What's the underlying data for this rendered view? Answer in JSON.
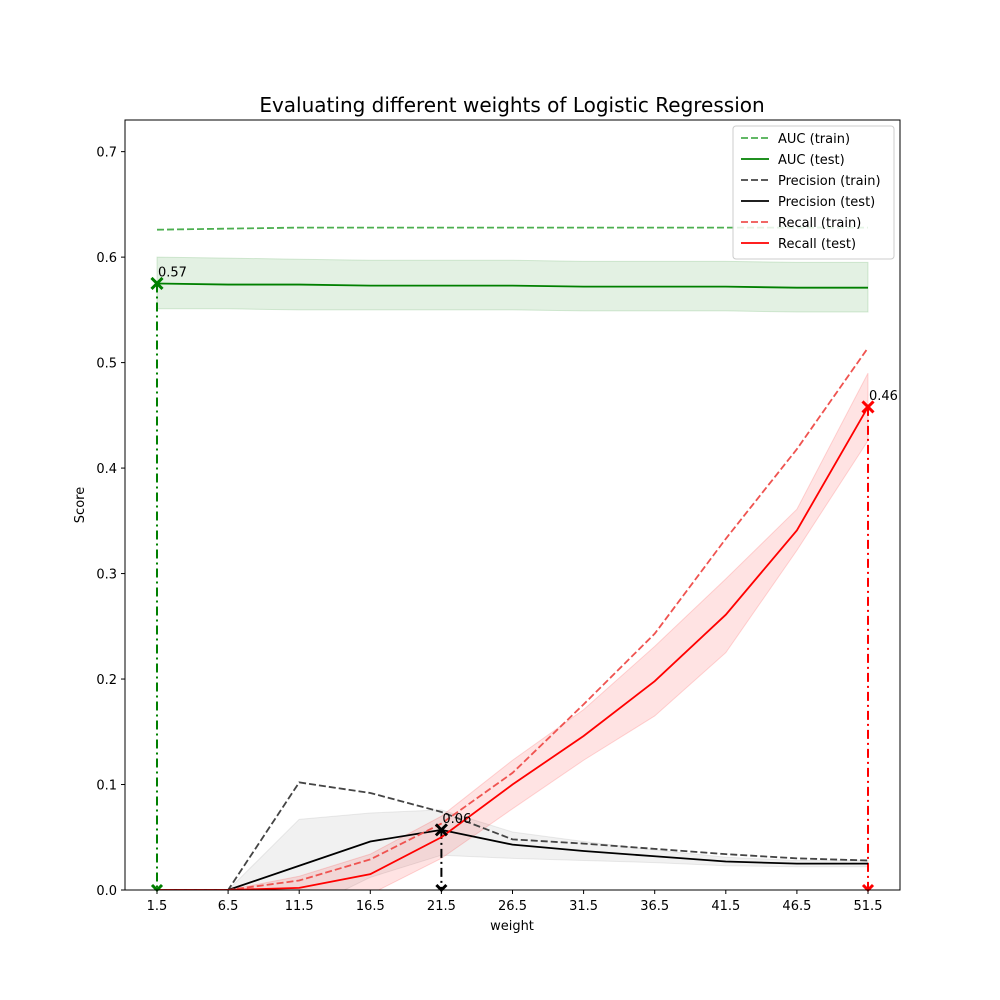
{
  "chart_data": {
    "type": "line",
    "title": "Evaluating different weights of Logistic Regression",
    "xlabel": "weight",
    "ylabel": "Score",
    "x": [
      1.5,
      6.5,
      11.5,
      16.5,
      21.5,
      26.5,
      31.5,
      36.5,
      41.5,
      46.5,
      51.5
    ],
    "x_tick_labels": [
      "1.5",
      "6.5",
      "11.5",
      "16.5",
      "21.5",
      "26.5",
      "31.5",
      "36.5",
      "41.5",
      "46.5",
      "51.5"
    ],
    "xlim": [
      -0.75,
      53.75
    ],
    "ylim": [
      0,
      0.73
    ],
    "y_ticks": [
      0.0,
      0.1,
      0.2,
      0.3,
      0.4,
      0.5,
      0.6,
      0.7
    ],
    "y_tick_labels": [
      "0.0",
      "0.1",
      "0.2",
      "0.3",
      "0.4",
      "0.5",
      "0.6",
      "0.7"
    ],
    "grid": false,
    "legend_position": "top-right",
    "series": [
      {
        "name": "AUC (train)",
        "color": "#4caf50",
        "dash": true,
        "values": [
          0.626,
          0.627,
          0.628,
          0.628,
          0.628,
          0.628,
          0.628,
          0.628,
          0.628,
          0.628,
          0.628
        ]
      },
      {
        "name": "AUC (test)",
        "color": "#008000",
        "dash": false,
        "values": [
          0.575,
          0.574,
          0.574,
          0.573,
          0.573,
          0.573,
          0.572,
          0.572,
          0.572,
          0.571,
          0.571
        ],
        "band_lower": [
          0.551,
          0.551,
          0.55,
          0.55,
          0.55,
          0.55,
          0.549,
          0.549,
          0.549,
          0.548,
          0.548
        ],
        "band_upper": [
          0.6,
          0.599,
          0.598,
          0.597,
          0.597,
          0.597,
          0.596,
          0.596,
          0.596,
          0.595,
          0.595
        ],
        "band_color": "#008000"
      },
      {
        "name": "Precision (train)",
        "color": "#444444",
        "dash": true,
        "values": [
          0.0,
          0.0,
          0.102,
          0.092,
          0.074,
          0.048,
          0.044,
          0.039,
          0.034,
          0.03,
          0.028
        ]
      },
      {
        "name": "Precision (test)",
        "color": "#000000",
        "dash": false,
        "values": [
          0.0,
          0.0,
          0.023,
          0.046,
          0.057,
          0.043,
          0.037,
          0.032,
          0.027,
          0.025,
          0.025
        ],
        "band_lower": [
          0.0,
          0.0,
          -0.021,
          0.012,
          0.033,
          0.03,
          0.028,
          0.026,
          0.023,
          0.022,
          0.022
        ],
        "band_upper": [
          0.0,
          0.0,
          0.067,
          0.073,
          0.076,
          0.055,
          0.046,
          0.038,
          0.031,
          0.028,
          0.028
        ],
        "band_color": "#808080"
      },
      {
        "name": "Recall (train)",
        "color": "#ef5350",
        "dash": true,
        "values": [
          0.0,
          0.0,
          0.009,
          0.029,
          0.063,
          0.111,
          0.176,
          0.243,
          0.333,
          0.418,
          0.514
        ]
      },
      {
        "name": "Recall (test)",
        "color": "#ff0000",
        "dash": false,
        "values": [
          0.0,
          0.0,
          0.002,
          0.015,
          0.05,
          0.1,
          0.146,
          0.198,
          0.261,
          0.341,
          0.458
        ],
        "band_lower": [
          0.0,
          0.0,
          -0.009,
          -0.004,
          0.03,
          0.077,
          0.123,
          0.165,
          0.225,
          0.322,
          0.426
        ],
        "band_upper": [
          0.0,
          0.0,
          0.013,
          0.034,
          0.07,
          0.123,
          0.171,
          0.231,
          0.295,
          0.361,
          0.49
        ],
        "band_color": "#ff0000"
      }
    ],
    "annotations": [
      {
        "series": "AUC (test)",
        "x": 1.5,
        "y": 0.575,
        "label": "0.57",
        "color": "#008000"
      },
      {
        "series": "Precision (test)",
        "x": 21.5,
        "y": 0.057,
        "label": "0.06",
        "color": "#000000"
      },
      {
        "series": "Recall (test)",
        "x": 51.5,
        "y": 0.458,
        "label": "0.46",
        "color": "#ff0000"
      }
    ]
  }
}
